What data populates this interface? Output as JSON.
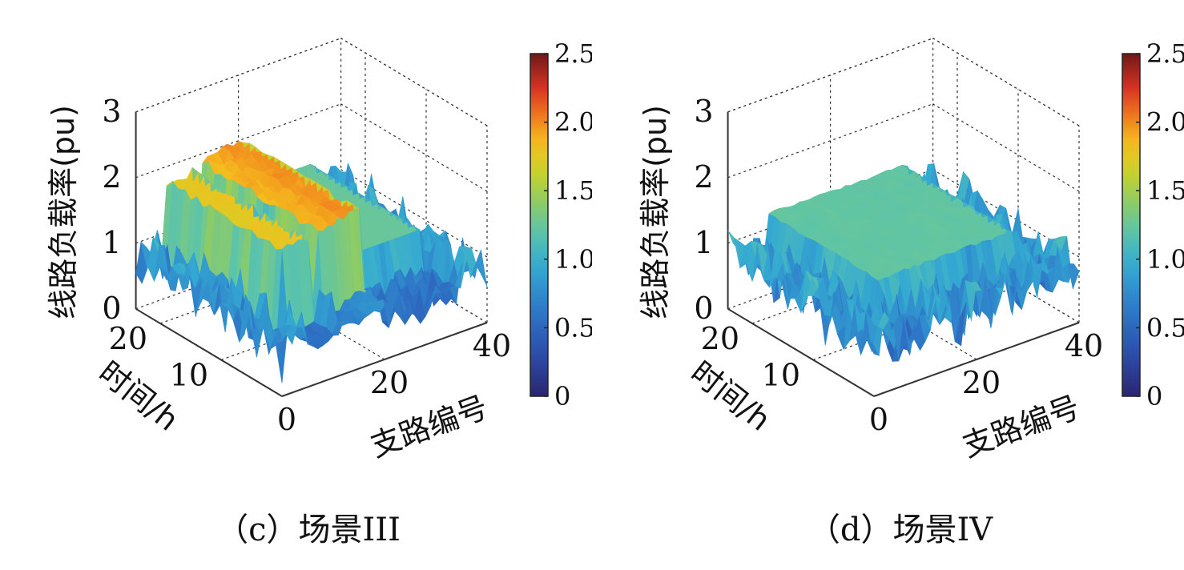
{
  "chart_data": [
    {
      "type": "surface",
      "panel": "c",
      "caption": "（c）场景III",
      "zlabel": "线路负载率(pu)",
      "xlabel": "支路编号",
      "ylabel": "时间/h",
      "xticks": [
        "0",
        "20",
        "40"
      ],
      "yticks": [
        "20",
        "10"
      ],
      "zticks": [
        "0",
        "1",
        "2",
        "3"
      ],
      "xlim": [
        0,
        40
      ],
      "ylim": [
        0,
        24
      ],
      "zlim": [
        0,
        3
      ],
      "colorbar": {
        "range": [
          0,
          2.5
        ],
        "ticks": [
          "0",
          "0.5",
          "1.0",
          "1.5",
          "2.0",
          "2.5"
        ]
      },
      "surface_description": {
        "plateau_level": 1.25,
        "plateau_branch_range": [
          22,
          34
        ],
        "high_ridges": [
          {
            "branch_range": [
              6,
              11
            ],
            "level": 1.7
          },
          {
            "branch_range": [
              13,
              17
            ],
            "level": 1.8
          },
          {
            "branch_range": [
              17,
              21
            ],
            "level": 1.9
          }
        ],
        "background_level_range": [
          0.2,
          1.1
        ],
        "max_value": 2.0
      }
    },
    {
      "type": "surface",
      "panel": "d",
      "caption": "（d）场景IV",
      "zlabel": "线路负载率(pu)",
      "xlabel": "支路编号",
      "ylabel": "时间/h",
      "xticks": [
        "0",
        "20",
        "40"
      ],
      "yticks": [
        "20",
        "10"
      ],
      "zticks": [
        "0",
        "1",
        "2",
        "3"
      ],
      "xlim": [
        0,
        40
      ],
      "ylim": [
        0,
        24
      ],
      "zlim": [
        0,
        3
      ],
      "colorbar": {
        "range": [
          0,
          2.5
        ],
        "ticks": [
          "0",
          "0.5",
          "1.0",
          "1.5",
          "2.0",
          "2.5"
        ]
      },
      "surface_description": {
        "plateau_level": 1.2,
        "plateau_branch_range": [
          8,
          34
        ],
        "plateau_time_range": [
          6,
          24
        ],
        "high_ridges": [],
        "background_level_range": [
          0.2,
          1.2
        ],
        "max_value": 1.5
      }
    }
  ]
}
